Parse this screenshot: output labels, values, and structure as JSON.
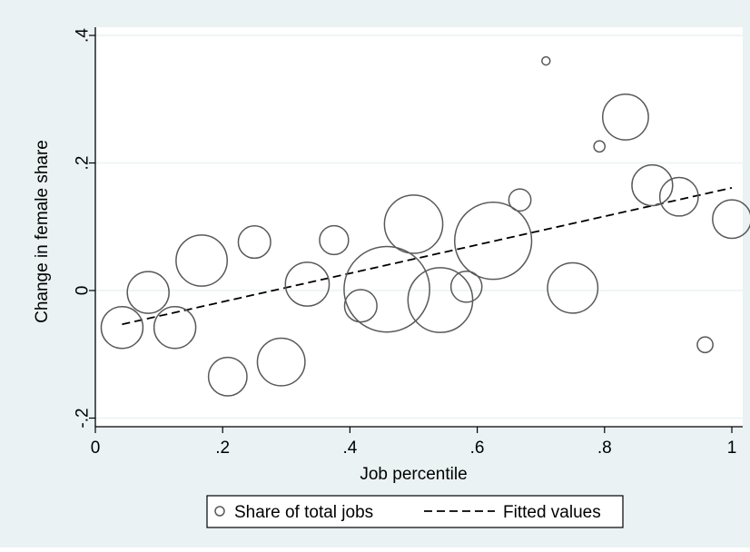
{
  "chart_data": {
    "type": "scatter",
    "title": "",
    "xlabel": "Job percentile",
    "ylabel": "Change in female share",
    "xlim": [
      0,
      1
    ],
    "ylim": [
      -0.2,
      0.4
    ],
    "x_ticks": [
      0,
      0.2,
      0.4,
      0.6,
      0.8,
      1
    ],
    "x_tick_labels": [
      "0",
      ".2",
      ".4",
      ".6",
      ".8",
      "1"
    ],
    "y_ticks": [
      -0.2,
      0,
      0.2,
      0.4
    ],
    "y_tick_labels": [
      "-.2",
      "0",
      ".2",
      ".4"
    ],
    "grid": true,
    "legend_position": "bottom",
    "colors": {
      "outer_background": "#eaf2f3",
      "plot_background": "#ffffff",
      "grid": "#eaf2f3",
      "marker_stroke": "#595959",
      "fit_line": "#000000"
    },
    "series": [
      {
        "name": "Share of total jobs",
        "kind": "weighted-scatter",
        "points": [
          {
            "x": 0.042,
            "y": -0.058,
            "w": 1.0
          },
          {
            "x": 0.083,
            "y": -0.003,
            "w": 1.0
          },
          {
            "x": 0.125,
            "y": -0.058,
            "w": 1.0
          },
          {
            "x": 0.167,
            "y": 0.047,
            "w": 1.5
          },
          {
            "x": 0.208,
            "y": -0.135,
            "w": 0.85
          },
          {
            "x": 0.25,
            "y": 0.076,
            "w": 0.6
          },
          {
            "x": 0.292,
            "y": -0.112,
            "w": 1.3
          },
          {
            "x": 0.333,
            "y": 0.01,
            "w": 1.1
          },
          {
            "x": 0.375,
            "y": 0.079,
            "w": 0.48
          },
          {
            "x": 0.417,
            "y": -0.024,
            "w": 0.6
          },
          {
            "x": 0.458,
            "y": 0.002,
            "w": 4.2
          },
          {
            "x": 0.5,
            "y": 0.104,
            "w": 1.95
          },
          {
            "x": 0.542,
            "y": -0.015,
            "w": 2.4
          },
          {
            "x": 0.583,
            "y": 0.006,
            "w": 0.55
          },
          {
            "x": 0.625,
            "y": 0.078,
            "w": 3.4
          },
          {
            "x": 0.667,
            "y": 0.142,
            "w": 0.28
          },
          {
            "x": 0.708,
            "y": 0.36,
            "w": 0.03
          },
          {
            "x": 0.75,
            "y": 0.004,
            "w": 1.45
          },
          {
            "x": 0.792,
            "y": 0.226,
            "w": 0.07
          },
          {
            "x": 0.833,
            "y": 0.272,
            "w": 1.2
          },
          {
            "x": 0.875,
            "y": 0.165,
            "w": 0.95
          },
          {
            "x": 0.917,
            "y": 0.147,
            "w": 0.85
          },
          {
            "x": 0.958,
            "y": -0.085,
            "w": 0.14
          },
          {
            "x": 1.0,
            "y": 0.112,
            "w": 0.85
          }
        ]
      },
      {
        "name": "Fitted values",
        "kind": "dashed-line",
        "x": [
          0.042,
          1.0
        ],
        "y": [
          -0.053,
          0.161
        ]
      }
    ]
  }
}
